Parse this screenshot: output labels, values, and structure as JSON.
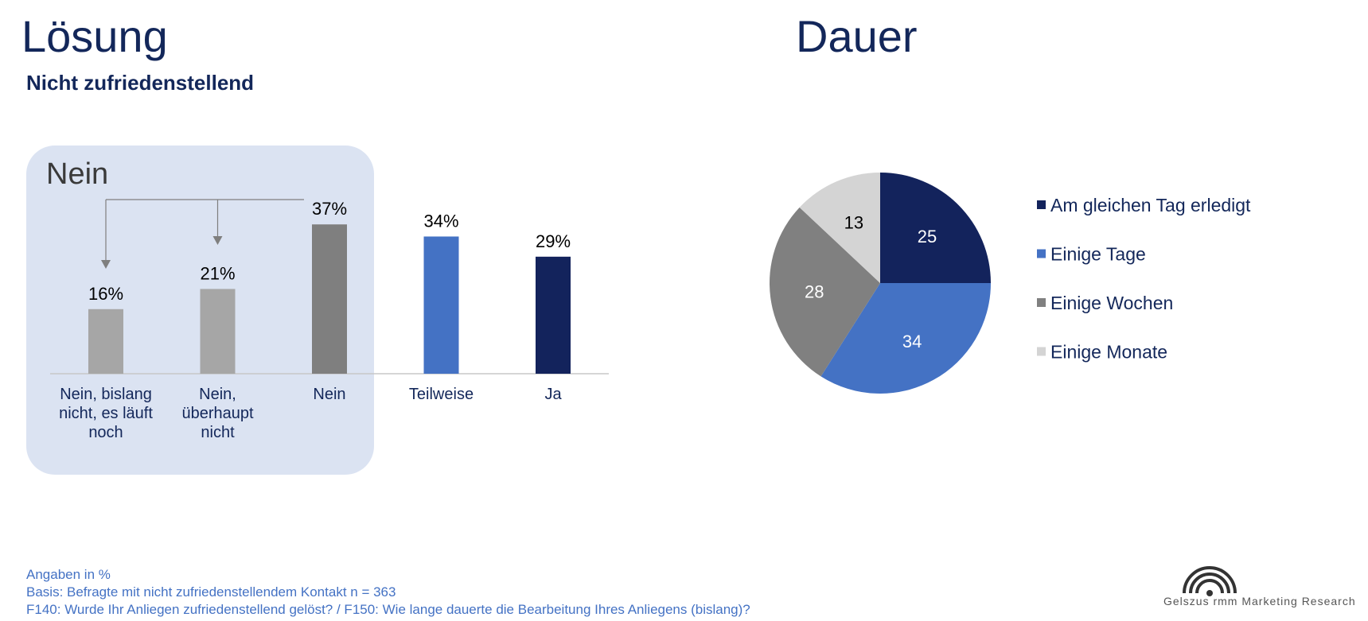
{
  "left": {
    "title": "Lösung",
    "subtitle": "Nicht zufriedenstellend",
    "box_label": "Nein"
  },
  "right": {
    "title": "Dauer"
  },
  "footer": {
    "line1": "Angaben in %",
    "line2": "Basis: Befragte mit nicht zufriedenstellendem Kontakt n = 363",
    "line3": "F140: Wurde Ihr Anliegen zufriedenstellend gelöst? / F150: Wie lange dauerte die Bearbeitung Ihres Anliegens (bislang)?"
  },
  "logo": {
    "text": "Gelszus rmm Marketing Research"
  },
  "chart_data": [
    {
      "type": "bar",
      "categories": [
        [
          "Nein, bislang",
          "nicht, es läuft",
          "noch"
        ],
        [
          "Nein,",
          "überhaupt",
          "nicht"
        ],
        [
          "Nein"
        ],
        [
          "Teilweise"
        ],
        [
          "Ja"
        ]
      ],
      "values": [
        16,
        21,
        37,
        34,
        29
      ],
      "data_labels": [
        "16%",
        "21%",
        "37%",
        "34%",
        "29%"
      ],
      "colors": [
        "#a6a6a6",
        "#a6a6a6",
        "#7f7f7f",
        "#4472c4",
        "#13235c"
      ],
      "ylim": [
        0,
        40
      ]
    },
    {
      "type": "pie",
      "labels": [
        "Am gleichen Tag erledigt",
        "Einige Tage",
        "Einige Wochen",
        "Einige Monate"
      ],
      "values": [
        25,
        34,
        28,
        13
      ],
      "colors": [
        "#13235c",
        "#4472c4",
        "#808080",
        "#d4d4d4"
      ],
      "label_colors": [
        "#ffffff",
        "#ffffff",
        "#ffffff",
        "#000000"
      ],
      "legend_position": "right"
    }
  ]
}
